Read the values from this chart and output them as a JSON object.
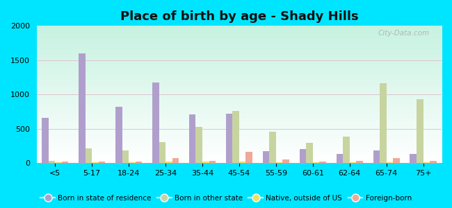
{
  "title": "Place of birth by age - Shady Hills",
  "categories": [
    "<5",
    "5-17",
    "18-24",
    "25-34",
    "35-44",
    "45-54",
    "55-59",
    "60-61",
    "62-64",
    "65-74",
    "75+"
  ],
  "series": {
    "Born in state of residence": [
      660,
      1600,
      820,
      1170,
      710,
      720,
      170,
      200,
      130,
      185,
      135
    ],
    "Born in other state": [
      30,
      210,
      185,
      310,
      530,
      760,
      460,
      295,
      390,
      1160,
      930
    ],
    "Native, outside of US": [
      10,
      15,
      10,
      20,
      25,
      20,
      10,
      10,
      10,
      15,
      15
    ],
    "Foreign-born": [
      20,
      20,
      20,
      75,
      30,
      160,
      50,
      25,
      30,
      75,
      35
    ]
  },
  "colors": {
    "Born in state of residence": "#b09fcc",
    "Born in other state": "#c8d4a0",
    "Native, outside of US": "#f0e060",
    "Foreign-born": "#f0a898"
  },
  "ylim": [
    0,
    2000
  ],
  "yticks": [
    0,
    500,
    1000,
    1500,
    2000
  ],
  "fig_background": "#00e5ff",
  "bar_width": 0.18,
  "watermark": "City-Data.com"
}
